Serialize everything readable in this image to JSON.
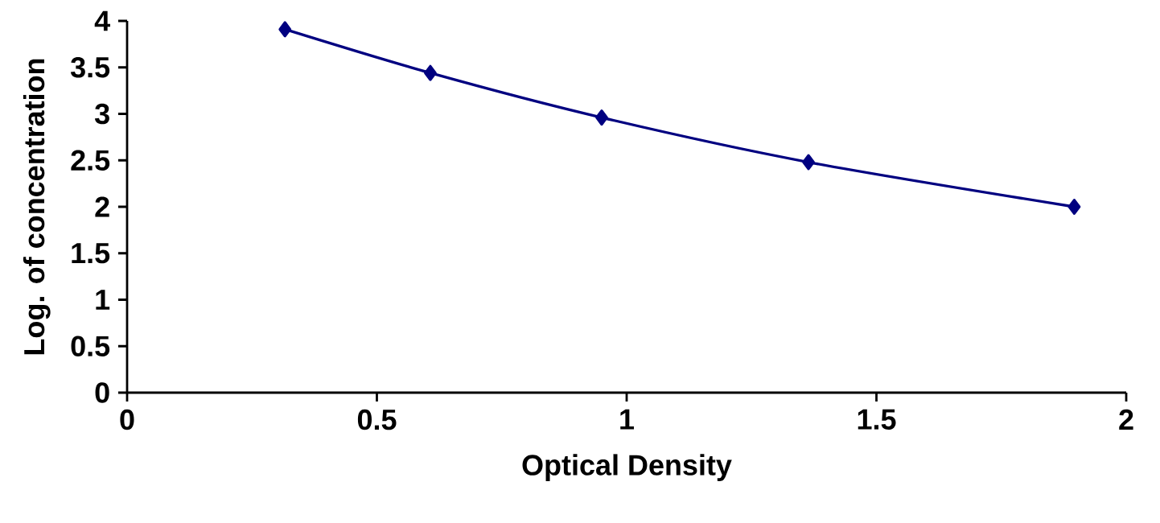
{
  "chart_data": {
    "type": "line",
    "xlabel": "Optical Density",
    "ylabel": "Log. of concentration",
    "x": [
      0.316,
      0.607,
      0.95,
      1.364,
      1.896
    ],
    "series": [
      {
        "color": "#000080",
        "values": [
          3.91,
          3.44,
          2.96,
          2.48,
          2.0
        ]
      }
    ],
    "xlim": [
      0,
      2
    ],
    "ylim": [
      0,
      4
    ],
    "xticks": [
      0,
      0.5,
      1,
      1.5,
      2
    ],
    "yticks": [
      0,
      0.5,
      1,
      1.5,
      2,
      2.5,
      3,
      3.5,
      4
    ],
    "marker": "diamond",
    "line_style": "solid",
    "grid": false
  }
}
